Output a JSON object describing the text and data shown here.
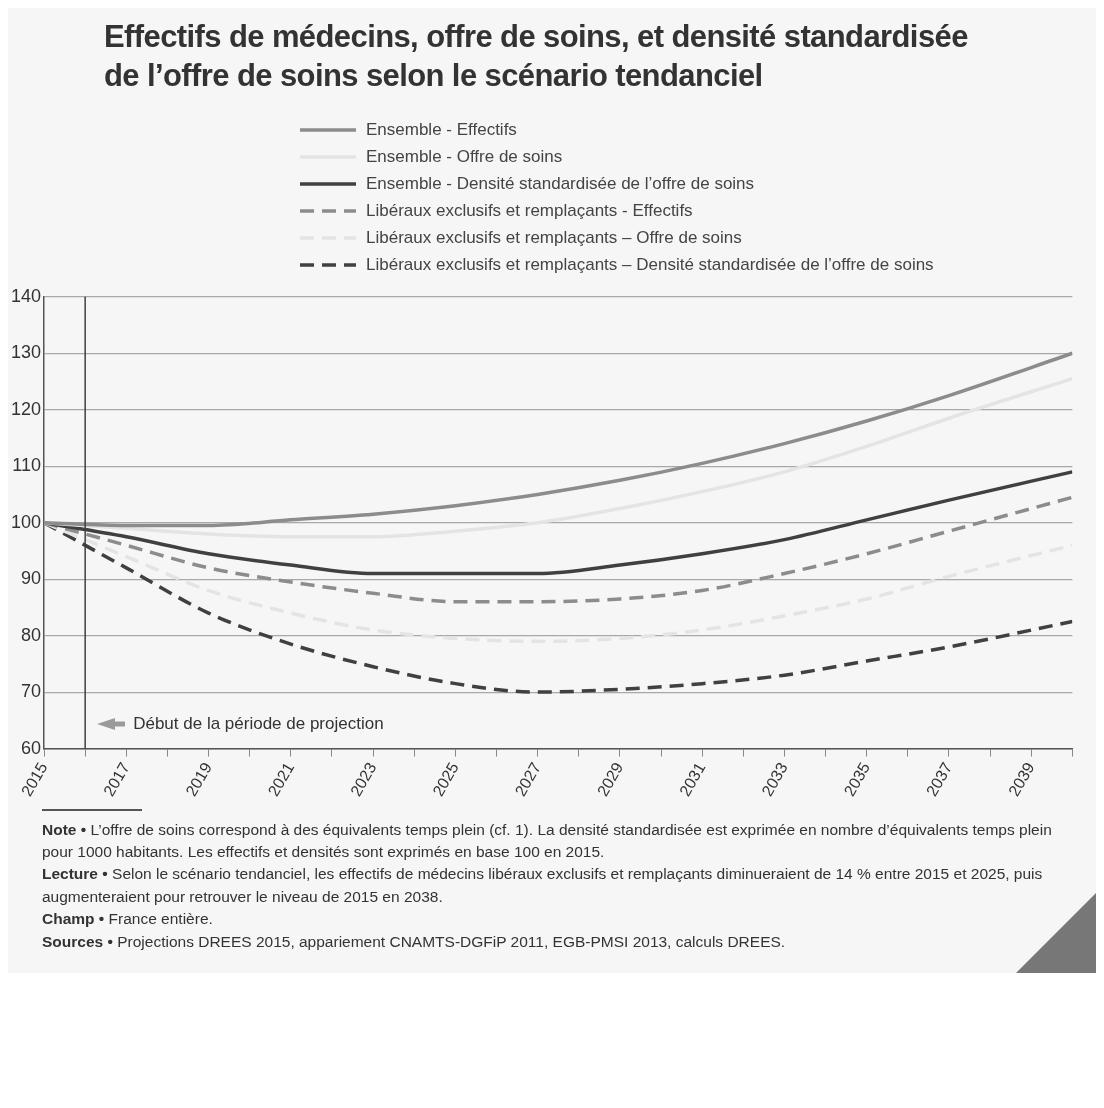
{
  "chart_data": {
    "type": "line",
    "title": "Effectifs de médecins, offre de soins, et densité standardisée de l’offre de soins selon le scénario tendanciel",
    "x": [
      2015,
      2017,
      2019,
      2021,
      2023,
      2025,
      2027,
      2029,
      2031,
      2033,
      2035,
      2037,
      2040
    ],
    "series": [
      {
        "name": "Ensemble - Effectifs",
        "color": "#8c8c8c",
        "line_style": "solid",
        "values": [
          100,
          99.5,
          99.5,
          100.5,
          101.5,
          103,
          105,
          107.5,
          110.5,
          114,
          118,
          122.5,
          130
        ]
      },
      {
        "name": "Ensemble - Offre de soins",
        "color": "#e4e4e4",
        "line_style": "solid",
        "values": [
          100,
          99,
          98,
          97.5,
          97.5,
          98.5,
          100,
          102.5,
          105.5,
          109,
          113.5,
          118.5,
          125.5
        ]
      },
      {
        "name": "Ensemble - Densité standardisée de l’offre de soins",
        "color": "#404040",
        "line_style": "solid",
        "values": [
          100,
          97.5,
          94.5,
          92.5,
          91,
          91,
          91,
          92.5,
          94.5,
          97,
          100.5,
          104,
          109
        ]
      },
      {
        "name": "Libéraux exclusifs et remplaçants - Effectifs",
        "color": "#8c8c8c",
        "line_style": "dashed",
        "values": [
          100,
          96,
          92,
          89.5,
          87.5,
          86,
          86,
          86.5,
          88,
          91,
          94.5,
          98.5,
          104.5
        ]
      },
      {
        "name": "Libéraux exclusifs et remplaçants – Offre de soins",
        "color": "#e4e4e4",
        "line_style": "dashed",
        "values": [
          100,
          94,
          88,
          84,
          81,
          79.5,
          79,
          79.5,
          81,
          83.5,
          86.5,
          90.5,
          96
        ]
      },
      {
        "name": "Libéraux exclusifs et remplaçants – Densité standardisée de l’offre de soins",
        "color": "#404040",
        "line_style": "dashed",
        "values": [
          100,
          92,
          84,
          78.5,
          74.5,
          71.5,
          70,
          70.5,
          71.5,
          73,
          75.5,
          78,
          82.5
        ]
      }
    ],
    "xlim": [
      2015,
      2040
    ],
    "xticks": [
      2015,
      {
        "value": 2016,
        "label": null
      },
      2017,
      {
        "value": 2018,
        "label": null
      },
      2019,
      {
        "value": 2020,
        "label": null
      },
      2021,
      {
        "value": 2022,
        "label": null
      },
      2023,
      {
        "value": 2024,
        "label": null
      },
      2025,
      {
        "value": 2026,
        "label": null
      },
      2027,
      {
        "value": 2028,
        "label": null
      },
      2029,
      {
        "value": 2030,
        "label": null
      },
      2031,
      {
        "value": 2032,
        "label": null
      },
      2033,
      {
        "value": 2034,
        "label": null
      },
      2035,
      {
        "value": 2036,
        "label": null
      },
      2037,
      {
        "value": 2038,
        "label": null
      },
      2039,
      {
        "value": 2040,
        "label": null
      }
    ],
    "ylim": [
      60,
      140
    ],
    "yticks": [
      60,
      70,
      80,
      90,
      100,
      110,
      120,
      130,
      140
    ],
    "grid": "y",
    "legend": "top",
    "marker": "none",
    "ref_lines": [
      {
        "axis": "x",
        "value": 2016,
        "label": "Début de la période de projection",
        "color": "#404040"
      }
    ],
    "annotations": [
      "Note • L’offre de soins correspond à des équivalents temps plein (cf. 1). La densité standardisée est exprimée en nombre d’équivalents temps plein pour 1000 habitants. Les effectifs et densités sont exprimés en base 100 en 2015.",
      "Lecture • Selon le scénario tendanciel, les effectifs de médecins libéraux exclusifs et remplaçants diminueraient de 14 % entre 2015 et 2025, puis augmenteraient pour retrouver le niveau de 2015 en 2038.",
      "Champ • France entière.",
      "Sources • Projections DREES 2015, appariement CNAMTS-DGFiP 2011, EGB-PMSI 2013, calculs DREES."
    ]
  }
}
